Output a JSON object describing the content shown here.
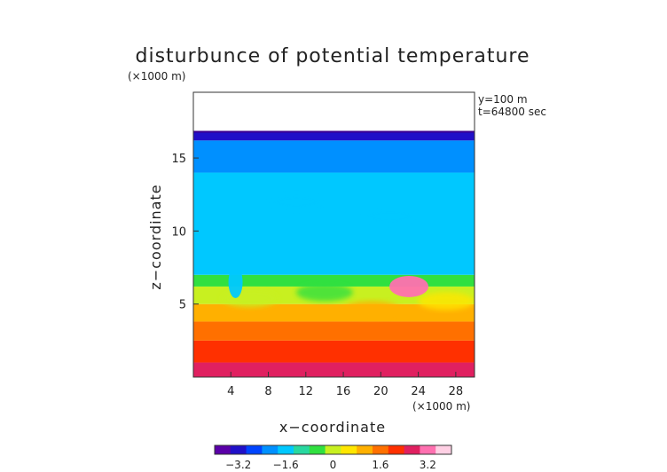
{
  "chart_data": {
    "type": "heatmap",
    "title": "disturbunce of potential temperature",
    "x_unit_label": "(×1000 m)",
    "z_unit_label": "(×1000 m)",
    "xlabel": "x−coordinate",
    "ylabel": "z−coordinate",
    "annotations": [
      "y=100 m",
      "t=64800 sec"
    ],
    "xlim": [
      0,
      30
    ],
    "ylim": [
      0,
      19.5
    ],
    "x_ticks": [
      4,
      8,
      12,
      16,
      20,
      24,
      28
    ],
    "y_ticks": [
      5,
      10,
      15
    ],
    "field_top_z": 16.8,
    "grid": false,
    "colorbar": {
      "range": [
        -4,
        4
      ],
      "ticks": [
        -3.2,
        -1.6,
        0,
        1.6,
        3.2
      ],
      "tick_labels": [
        "−3.2",
        "−1.6",
        "0",
        "1.6",
        "3.2"
      ],
      "colors": [
        "#5a00a8",
        "#2010c8",
        "#0044ff",
        "#0090ff",
        "#00c8ff",
        "#28d8a0",
        "#30e040",
        "#c8f020",
        "#ffe600",
        "#ffb000",
        "#ff7000",
        "#ff3000",
        "#e02060",
        "#ff70b0",
        "#ffd0e4"
      ]
    },
    "layers": [
      {
        "z_from": 0,
        "z_to": 1.0,
        "value": 2.8
      },
      {
        "z_from": 1.0,
        "z_to": 2.5,
        "value": 2.3
      },
      {
        "z_from": 2.5,
        "z_to": 3.8,
        "value": 1.8
      },
      {
        "z_from": 3.8,
        "z_to": 5.0,
        "value": 1.0
      },
      {
        "z_from": 5.0,
        "z_to": 6.2,
        "value": 0.2
      },
      {
        "z_from": 6.2,
        "z_to": 7.0,
        "value": -0.5
      },
      {
        "z_from": 7.0,
        "z_to": 14.0,
        "value": -1.5
      },
      {
        "z_from": 14.0,
        "z_to": 16.2,
        "value": -1.9
      },
      {
        "z_from": 16.2,
        "z_to": 16.8,
        "value": -3.0
      }
    ],
    "features": [
      {
        "kind": "warm blob",
        "x": 23,
        "z": 6.2,
        "value": 3.0
      },
      {
        "kind": "cool finger",
        "x": 4.5,
        "z": 6.5,
        "value": -1.4
      }
    ]
  }
}
